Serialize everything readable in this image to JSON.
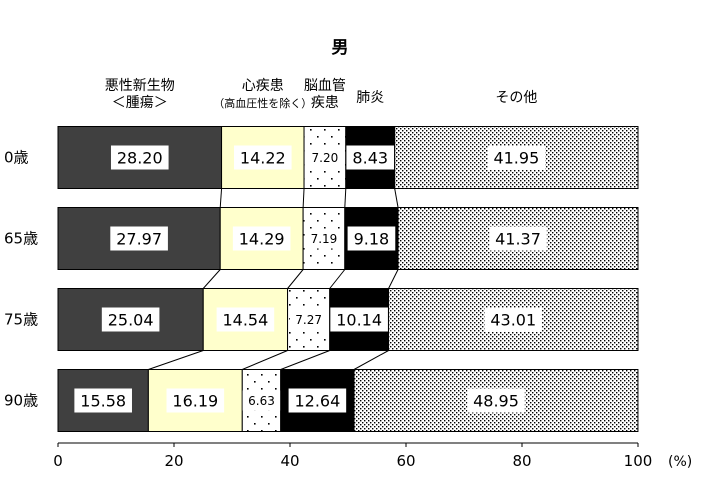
{
  "chart_data": {
    "type": "bar",
    "orientation": "horizontal",
    "stacked": true,
    "title": "男",
    "categories": [
      "0歳",
      "65歳",
      "75歳",
      "90歳"
    ],
    "series": [
      {
        "name": "悪性新生物＜腫瘍＞",
        "name_lines": [
          "悪性新生物",
          "＜腫瘍＞"
        ],
        "values": [
          28.2,
          27.97,
          25.04,
          15.58
        ],
        "color": "#404040",
        "pattern": "solid"
      },
      {
        "name": "心疾患（高血圧性を除く）",
        "name_lines": [
          "心疾患",
          "（高血圧性を除く）"
        ],
        "values": [
          14.22,
          14.29,
          14.54,
          16.19
        ],
        "color": "#ffffcc",
        "pattern": "solid"
      },
      {
        "name": "脳血管疾患",
        "name_lines": [
          "脳血管",
          "疾患"
        ],
        "values": [
          7.2,
          7.19,
          7.27,
          6.63
        ],
        "color": "#ffffff",
        "pattern": "sparse-dots"
      },
      {
        "name": "肺炎",
        "name_lines": [
          "肺炎"
        ],
        "values": [
          8.43,
          9.18,
          10.14,
          12.64
        ],
        "color": "#000000",
        "pattern": "solid"
      },
      {
        "name": "その他",
        "name_lines": [
          "その他"
        ],
        "values": [
          41.95,
          41.37,
          43.01,
          48.95
        ],
        "color": "#ffffff",
        "pattern": "dense-dots"
      }
    ],
    "xlim": [
      0,
      100
    ],
    "xticks": [
      0,
      20,
      40,
      60,
      80,
      100
    ],
    "xunit": "(%)",
    "label_format": "2 decimals",
    "connector_lines": true
  }
}
